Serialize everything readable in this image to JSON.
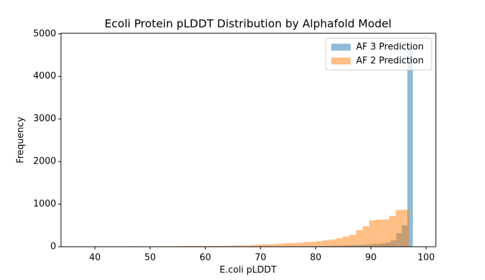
{
  "chart_data": {
    "type": "histogram",
    "title": "Ecoli Protein pLDDT Distribution by Alphafold Model",
    "xlabel": "E.coli pLDDT",
    "ylabel": "Frequency",
    "xlim": [
      33.85,
      101.76
    ],
    "ylim": [
      0,
      5013
    ],
    "xticks": [
      40,
      50,
      60,
      70,
      80,
      90,
      100
    ],
    "yticks": [
      0,
      1000,
      2000,
      3000,
      4000,
      5000
    ],
    "legend": "upper right",
    "opacity": 0.5,
    "series": [
      {
        "name": "AF 3 Prediction",
        "color": "#1f77b4",
        "bins": [
          38.6,
          39.6,
          40.6,
          41.6,
          42.6,
          43.6,
          44.6,
          45.6,
          46.6,
          47.6,
          48.6,
          49.6,
          50.6,
          51.6,
          52.6,
          53.6,
          54.6,
          55.6,
          56.6,
          57.6,
          58.6,
          59.6,
          60.6,
          61.6,
          62.6,
          63.6,
          64.6,
          65.6,
          66.6,
          67.6,
          68.6,
          69.6,
          70.6,
          71.6,
          72.6,
          73.6,
          74.6,
          75.6,
          76.6,
          77.6,
          78.6,
          79.6,
          80.6,
          81.6,
          82.6,
          83.6,
          84.6,
          85.6,
          86.6,
          87.6,
          88.6,
          89.6,
          90.6,
          91.6,
          92.6,
          93.6,
          94.6,
          95.6,
          96.6,
          97.6,
          98.6
        ],
        "values": [
          0,
          0,
          0,
          0,
          0,
          0,
          0,
          0,
          1,
          1,
          0,
          1,
          1,
          1,
          1,
          2,
          1,
          2,
          2,
          2,
          3,
          2,
          3,
          3,
          3,
          4,
          3,
          4,
          4,
          5,
          5,
          6,
          6,
          6,
          7,
          7,
          8,
          8,
          9,
          10,
          10,
          12,
          14,
          15,
          18,
          20,
          25,
          30,
          35,
          40,
          50,
          60,
          70,
          80,
          100,
          150,
          320,
          500,
          4700,
          0
        ]
      },
      {
        "name": "AF 2 Prediction",
        "color": "#ff7f0e",
        "bins": [
          36.9,
          38.1,
          39.3,
          40.5,
          41.7,
          42.9,
          44.1,
          45.3,
          46.5,
          47.7,
          48.9,
          50.1,
          51.3,
          52.5,
          53.7,
          54.9,
          56.1,
          57.3,
          58.5,
          59.7,
          60.9,
          62.1,
          63.3,
          64.5,
          65.7,
          66.9,
          68.1,
          69.3,
          70.5,
          71.7,
          72.9,
          74.1,
          75.3,
          76.5,
          77.7,
          78.9,
          80.1,
          81.3,
          82.5,
          83.7,
          84.9,
          86.1,
          87.3,
          88.5,
          89.7,
          90.9,
          92.1,
          93.3,
          94.5,
          95.7,
          96.9
        ],
        "values": [
          2,
          1,
          2,
          1,
          3,
          2,
          3,
          4,
          12,
          5,
          6,
          10,
          12,
          14,
          13,
          15,
          16,
          15,
          18,
          17,
          20,
          19,
          22,
          25,
          30,
          28,
          40,
          50,
          55,
          60,
          70,
          80,
          85,
          95,
          110,
          115,
          130,
          150,
          170,
          200,
          240,
          280,
          390,
          480,
          620,
          640,
          640,
          720,
          860,
          870
        ]
      }
    ]
  }
}
